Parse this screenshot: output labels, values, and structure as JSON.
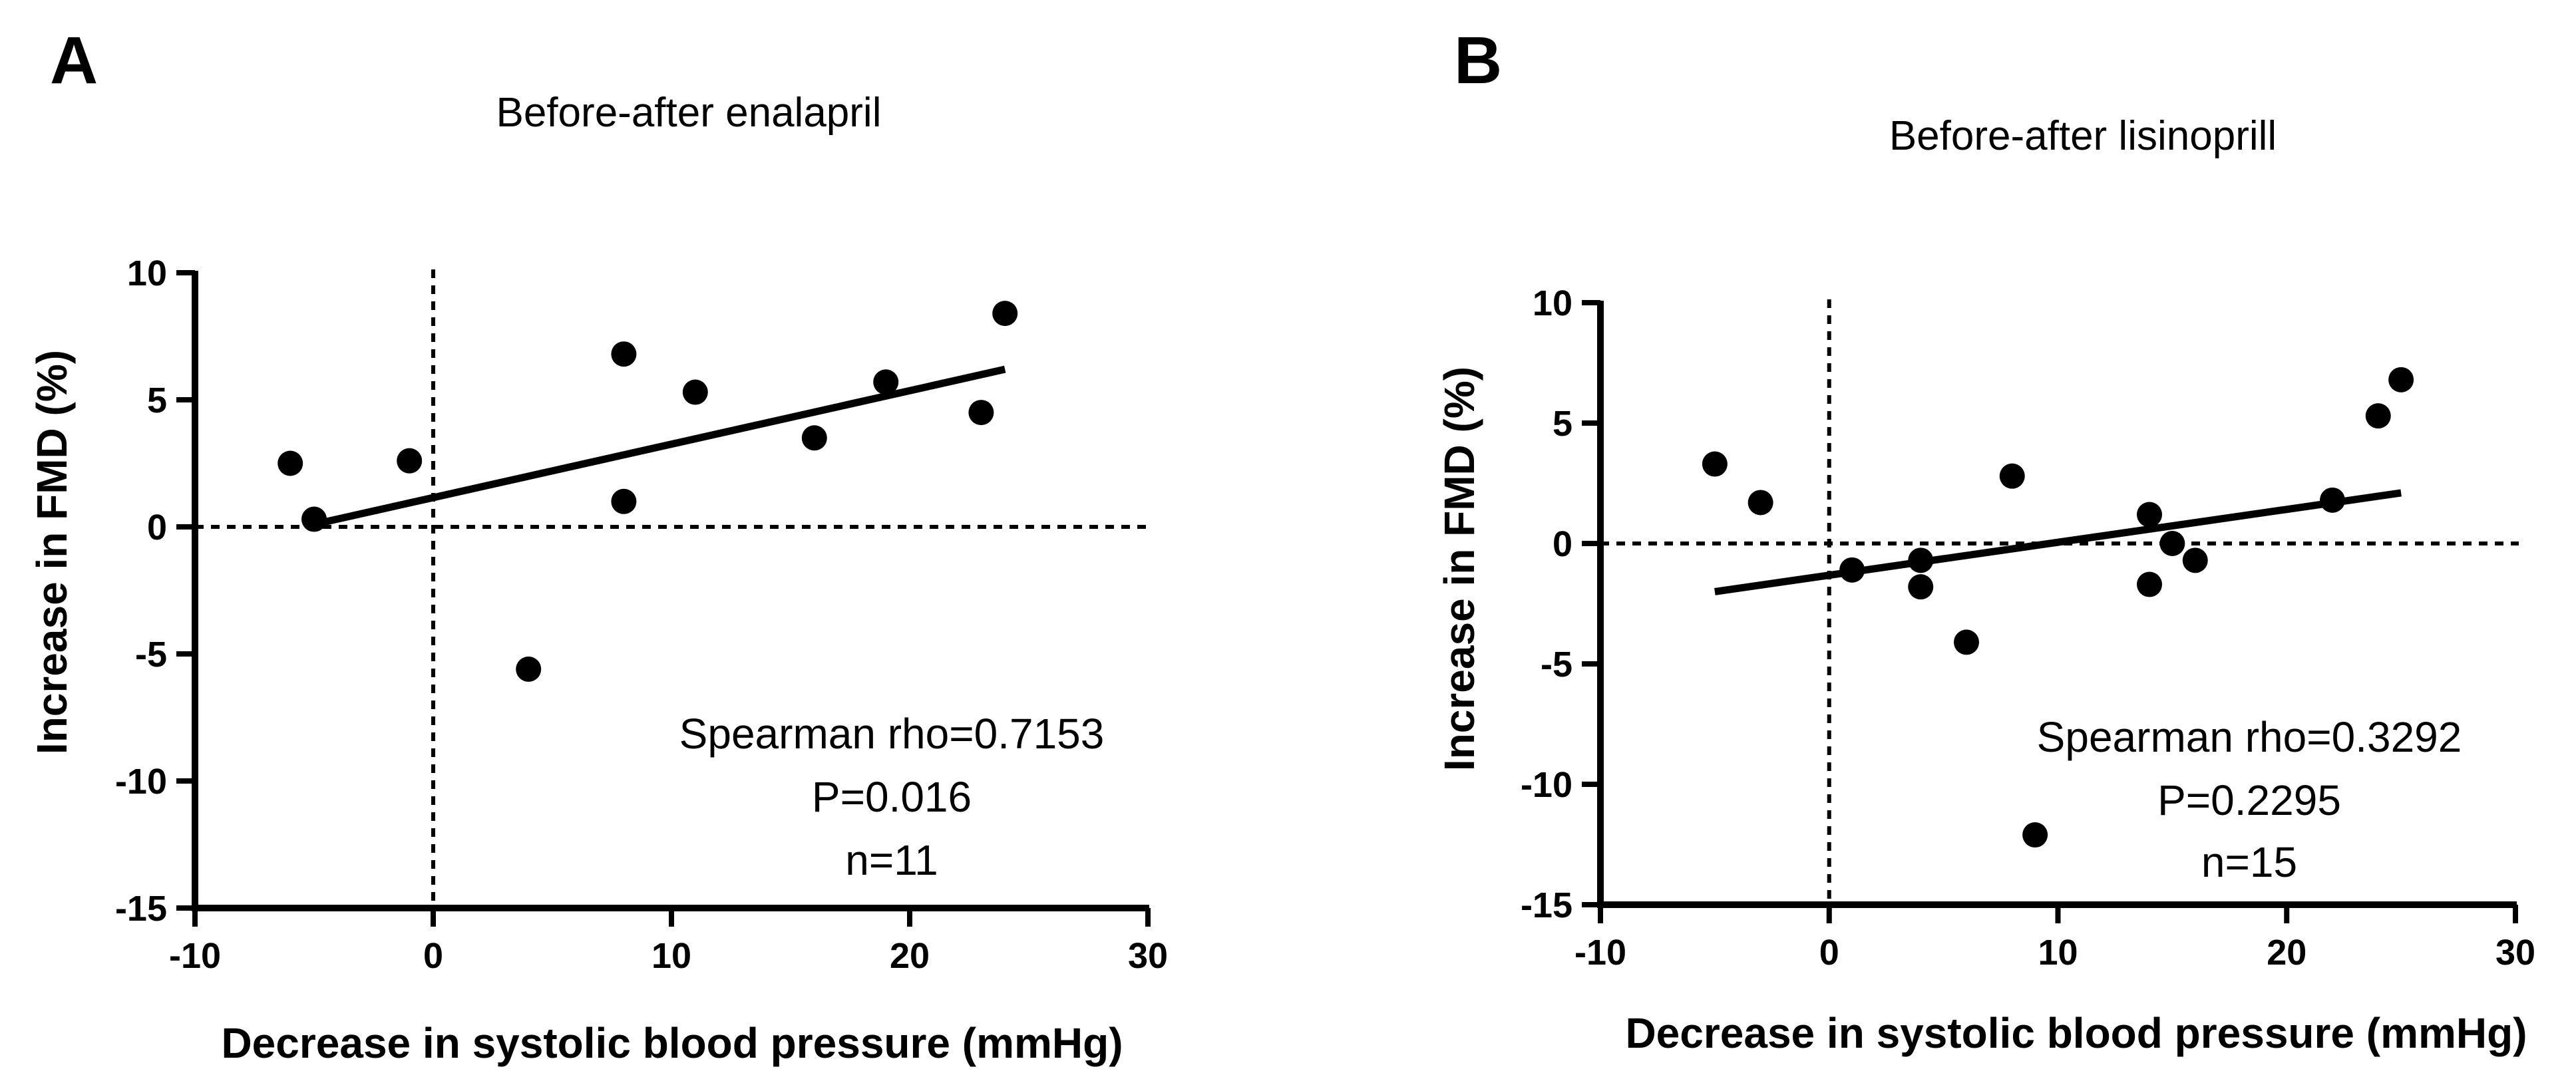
{
  "chart_data": [
    {
      "type": "scatter",
      "panel_label": "A",
      "title": "Before-after enalapril",
      "xlabel": "Decrease in systolic blood pressure (mmHg)",
      "ylabel": "Increase in FMD (%)",
      "xlim": [
        -10,
        30
      ],
      "ylim": [
        -15,
        10
      ],
      "xticks": [
        -10,
        0,
        10,
        20,
        30
      ],
      "yticks": [
        -15,
        -10,
        -5,
        0,
        5,
        10
      ],
      "xtick_labels": [
        "-10",
        "0",
        "10",
        "20",
        "30"
      ],
      "ytick_labels": [
        "-15",
        "-10",
        "-5",
        "0",
        "5",
        "10"
      ],
      "points": [
        {
          "x": -6,
          "y": 2.5
        },
        {
          "x": -5,
          "y": 0.3
        },
        {
          "x": -1,
          "y": 2.6
        },
        {
          "x": 4,
          "y": -5.6
        },
        {
          "x": 8,
          "y": 6.8
        },
        {
          "x": 8,
          "y": 1.0
        },
        {
          "x": 11,
          "y": 5.3
        },
        {
          "x": 16,
          "y": 3.5
        },
        {
          "x": 19,
          "y": 5.7
        },
        {
          "x": 23,
          "y": 4.5
        },
        {
          "x": 24,
          "y": 8.4
        }
      ],
      "fit_line": {
        "x": [
          -5,
          24
        ],
        "y": [
          0.1,
          6.2
        ]
      },
      "reference_lines": {
        "x": 0,
        "y": 0
      },
      "annotations": [
        "Spearman rho=0.7153",
        "P=0.016",
        "n=11"
      ],
      "grid": false
    },
    {
      "type": "scatter",
      "panel_label": "B",
      "title": "Before-after lisinoprill",
      "xlabel": "Decrease in systolic blood pressure (mmHg)",
      "ylabel": "Increase in FMD (%)",
      "xlim": [
        -10,
        30
      ],
      "ylim": [
        -15,
        10
      ],
      "xticks": [
        -10,
        0,
        10,
        20,
        30
      ],
      "yticks": [
        -15,
        -10,
        -5,
        0,
        5,
        10
      ],
      "xtick_labels": [
        "-10",
        "0",
        "10",
        "20",
        "30"
      ],
      "ytick_labels": [
        "-15",
        "-10",
        "-5",
        "0",
        "5",
        "10"
      ],
      "points": [
        {
          "x": -5,
          "y": 3.3
        },
        {
          "x": -3,
          "y": 1.7
        },
        {
          "x": 1,
          "y": -1.1
        },
        {
          "x": 4,
          "y": -0.7
        },
        {
          "x": 4,
          "y": -1.8
        },
        {
          "x": 6,
          "y": -4.1
        },
        {
          "x": 8,
          "y": 2.8
        },
        {
          "x": 9,
          "y": -12.1
        },
        {
          "x": 14,
          "y": 1.2
        },
        {
          "x": 14,
          "y": -1.7
        },
        {
          "x": 15,
          "y": 0.0
        },
        {
          "x": 16,
          "y": -0.7
        },
        {
          "x": 22,
          "y": 1.8
        },
        {
          "x": 24,
          "y": 5.3
        },
        {
          "x": 25,
          "y": 6.8
        }
      ],
      "fit_line": {
        "x": [
          -5,
          25
        ],
        "y": [
          -2.0,
          2.1
        ]
      },
      "reference_lines": {
        "x": 0,
        "y": 0
      },
      "annotations": [
        "Spearman rho=0.3292",
        "P=0.2295",
        "n=15"
      ],
      "grid": false
    }
  ]
}
